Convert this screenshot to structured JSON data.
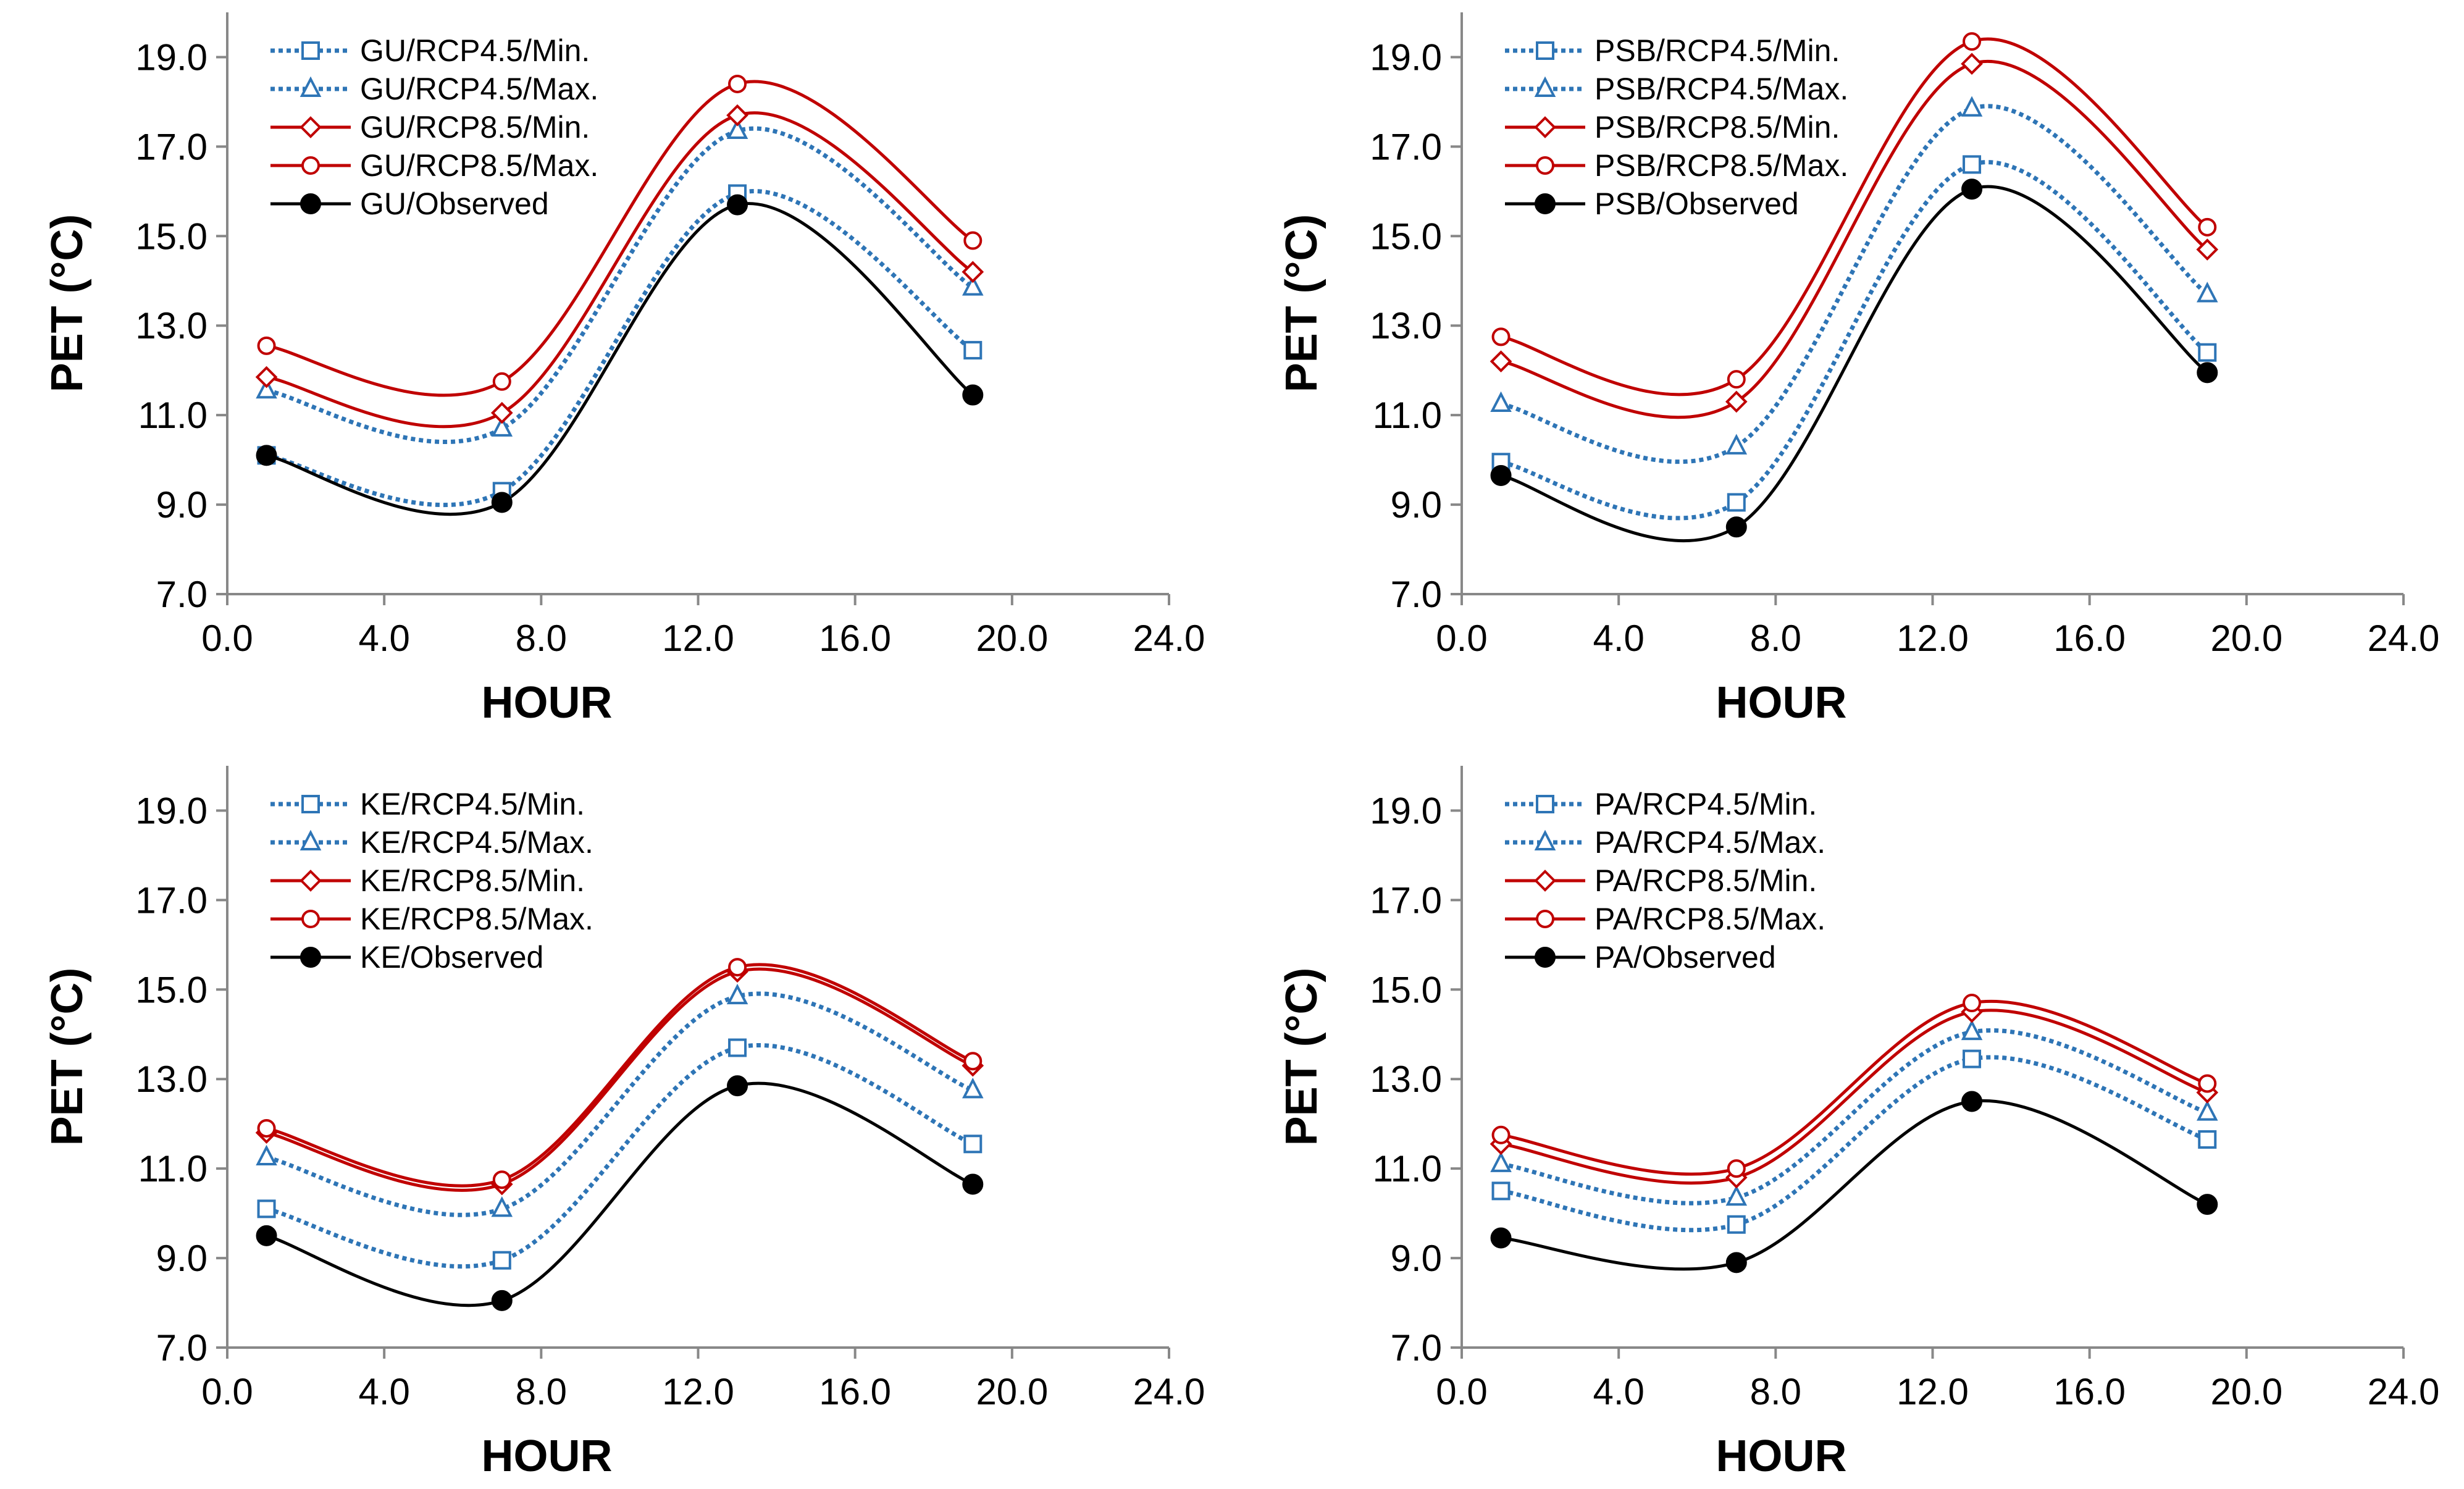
{
  "chart_data": [
    {
      "type": "line",
      "title": "",
      "xlabel": "HOUR",
      "ylabel": "PET (°C)",
      "xlim": [
        0,
        24
      ],
      "ylim": [
        7,
        20
      ],
      "xticks": [
        0,
        4,
        8,
        12,
        16,
        20,
        24
      ],
      "yticks": [
        7,
        9,
        11,
        13,
        15,
        17,
        19
      ],
      "xtick_labels": [
        "0.0",
        "4.0",
        "8.0",
        "12.0",
        "16.0",
        "20.0",
        "24.0"
      ],
      "ytick_labels": [
        "7.0",
        "9.0",
        "11.0",
        "13.0",
        "15.0",
        "17.0",
        "19.0"
      ],
      "grid": false,
      "legend_position": "top-left",
      "x": [
        1,
        7,
        13,
        19
      ],
      "series": [
        {
          "name": "GU/RCP4.5/Min.",
          "marker": "square",
          "style": "dotted",
          "color": "#2E75B6",
          "values": [
            10.1,
            9.3,
            15.95,
            12.45
          ]
        },
        {
          "name": "GU/RCP4.5/Max.",
          "marker": "triangle",
          "style": "dotted",
          "color": "#2E75B6",
          "values": [
            11.55,
            10.7,
            17.35,
            13.85
          ]
        },
        {
          "name": "GU/RCP8.5/Min.",
          "marker": "diamond",
          "style": "solid",
          "color": "#C00000",
          "values": [
            11.85,
            11.05,
            17.7,
            14.2
          ]
        },
        {
          "name": "GU/RCP8.5/Max.",
          "marker": "circle-open",
          "style": "solid",
          "color": "#C00000",
          "values": [
            12.55,
            11.75,
            18.4,
            14.9
          ]
        },
        {
          "name": "GU/Observed",
          "marker": "circle-filled",
          "style": "solid",
          "color": "#000000",
          "values": [
            10.1,
            9.05,
            15.7,
            11.45
          ]
        }
      ]
    },
    {
      "type": "line",
      "title": "",
      "xlabel": "HOUR",
      "ylabel": "PET (°C)",
      "xlim": [
        0,
        24
      ],
      "ylim": [
        7,
        20
      ],
      "xticks": [
        0,
        4,
        8,
        12,
        16,
        20,
        24
      ],
      "yticks": [
        7,
        9,
        11,
        13,
        15,
        17,
        19
      ],
      "xtick_labels": [
        "0.0",
        "4.0",
        "8.0",
        "12.0",
        "16.0",
        "20.0",
        "24.0"
      ],
      "ytick_labels": [
        "7.0",
        "9.0",
        "11.0",
        "13.0",
        "15.0",
        "17.0",
        "19.0"
      ],
      "grid": false,
      "legend_position": "top-left",
      "x": [
        1,
        7,
        13,
        19
      ],
      "series": [
        {
          "name": "PSB/RCP4.5/Min.",
          "marker": "square",
          "style": "dotted",
          "color": "#2E75B6",
          "values": [
            9.95,
            9.05,
            16.6,
            12.4
          ]
        },
        {
          "name": "PSB/RCP4.5/Max.",
          "marker": "triangle",
          "style": "dotted",
          "color": "#2E75B6",
          "values": [
            11.25,
            10.3,
            17.85,
            13.7
          ]
        },
        {
          "name": "PSB/RCP8.5/Min.",
          "marker": "diamond",
          "style": "solid",
          "color": "#C00000",
          "values": [
            12.2,
            11.3,
            18.85,
            14.7
          ]
        },
        {
          "name": "PSB/RCP8.5/Max.",
          "marker": "circle-open",
          "style": "solid",
          "color": "#C00000",
          "values": [
            12.75,
            11.8,
            19.35,
            15.2
          ]
        },
        {
          "name": "PSB/Observed",
          "marker": "circle-filled",
          "style": "solid",
          "color": "#000000",
          "values": [
            9.65,
            8.5,
            16.05,
            11.95
          ]
        }
      ]
    },
    {
      "type": "line",
      "title": "",
      "xlabel": "HOUR",
      "ylabel": "PET (°C)",
      "xlim": [
        0,
        24
      ],
      "ylim": [
        7,
        20
      ],
      "xticks": [
        0,
        4,
        8,
        12,
        16,
        20,
        24
      ],
      "yticks": [
        7,
        9,
        11,
        13,
        15,
        17,
        19
      ],
      "xtick_labels": [
        "0.0",
        "4.0",
        "8.0",
        "12.0",
        "16.0",
        "20.0",
        "24.0"
      ],
      "ytick_labels": [
        "7.0",
        "9.0",
        "11.0",
        "13.0",
        "15.0",
        "17.0",
        "19.0"
      ],
      "grid": false,
      "legend_position": "top-left",
      "x": [
        1,
        7,
        13,
        19
      ],
      "series": [
        {
          "name": "KE/RCP4.5/Min.",
          "marker": "square",
          "style": "dotted",
          "color": "#2E75B6",
          "values": [
            10.1,
            8.95,
            13.7,
            11.55
          ]
        },
        {
          "name": "KE/RCP4.5/Max.",
          "marker": "triangle",
          "style": "dotted",
          "color": "#2E75B6",
          "values": [
            11.25,
            10.1,
            14.85,
            12.75
          ]
        },
        {
          "name": "KE/RCP8.5/Min.",
          "marker": "diamond",
          "style": "solid",
          "color": "#C00000",
          "values": [
            11.8,
            10.65,
            15.4,
            13.3
          ]
        },
        {
          "name": "KE/RCP8.5/Max.",
          "marker": "circle-open",
          "style": "solid",
          "color": "#C00000",
          "values": [
            11.9,
            10.75,
            15.5,
            13.4
          ]
        },
        {
          "name": "KE/Observed",
          "marker": "circle-filled",
          "style": "solid",
          "color": "#000000",
          "values": [
            9.5,
            8.05,
            12.85,
            10.65
          ]
        }
      ]
    },
    {
      "type": "line",
      "title": "",
      "xlabel": "HOUR",
      "ylabel": "PET (°C)",
      "xlim": [
        0,
        24
      ],
      "ylim": [
        7,
        20
      ],
      "xticks": [
        0,
        4,
        8,
        12,
        16,
        20,
        24
      ],
      "yticks": [
        7,
        9,
        11,
        13,
        15,
        17,
        19
      ],
      "xtick_labels": [
        "0.0",
        "4.0",
        "8.0",
        "12.0",
        "16.0",
        "20.0",
        "24.0"
      ],
      "ytick_labels": [
        "7.0",
        "9.0",
        "11.0",
        "13.0",
        "15.0",
        "17.0",
        "19.0"
      ],
      "grid": false,
      "legend_position": "top-left",
      "x": [
        1,
        7,
        13,
        19
      ],
      "series": [
        {
          "name": "PA/RCP4.5/Min.",
          "marker": "square",
          "style": "dotted",
          "color": "#2E75B6",
          "values": [
            10.5,
            9.75,
            13.45,
            11.65
          ]
        },
        {
          "name": "PA/RCP4.5/Max.",
          "marker": "triangle",
          "style": "dotted",
          "color": "#2E75B6",
          "values": [
            11.1,
            10.35,
            14.05,
            12.25
          ]
        },
        {
          "name": "PA/RCP8.5/Min.",
          "marker": "diamond",
          "style": "solid",
          "color": "#C00000",
          "values": [
            11.55,
            10.8,
            14.5,
            12.7
          ]
        },
        {
          "name": "PA/RCP8.5/Max.",
          "marker": "circle-open",
          "style": "solid",
          "color": "#C00000",
          "values": [
            11.75,
            11.0,
            14.7,
            12.9
          ]
        },
        {
          "name": "PA/Observed",
          "marker": "circle-filled",
          "style": "solid",
          "color": "#000000",
          "values": [
            9.45,
            8.9,
            12.5,
            10.2
          ]
        }
      ]
    }
  ]
}
